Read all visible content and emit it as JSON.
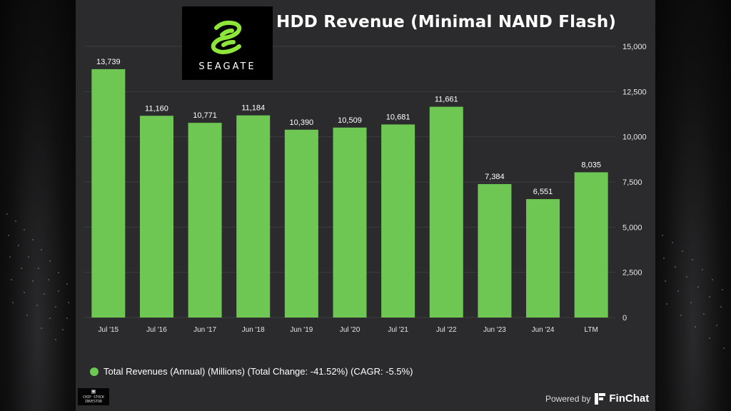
{
  "chart_data": {
    "type": "bar",
    "title": "HDD Revenue (Minimal NAND Flash)",
    "categories": [
      "Jul '15",
      "Jul '16",
      "Jun '17",
      "Jun '18",
      "Jun '19",
      "Jul '20",
      "Jul '21",
      "Jul '22",
      "Jun '23",
      "Jun '24",
      "LTM"
    ],
    "values": [
      13739,
      11160,
      10771,
      11184,
      10390,
      10509,
      10681,
      11661,
      7384,
      6551,
      8035
    ],
    "value_labels": [
      "13,739",
      "11,160",
      "10,771",
      "11,184",
      "10,390",
      "10,509",
      "10,681",
      "11,661",
      "7,384",
      "6,551",
      "8,035"
    ],
    "y_ticks": [
      0,
      2500,
      5000,
      7500,
      10000,
      12500,
      15000
    ],
    "y_tick_labels": [
      "0",
      "2,500",
      "5,000",
      "7,500",
      "10,000",
      "12,500",
      "15,000"
    ],
    "ylim": [
      0,
      15000
    ],
    "axis_side": "right",
    "grid": true,
    "xlabel": "",
    "ylabel": "",
    "legend": "Total Revenues (Annual) (Millions) (Total Change: -41.52%) (CAGR: -5.5%)",
    "legend_position": "bottom-left",
    "bar_color": "#6ec752"
  },
  "logo": {
    "brand": "SEAGATE"
  },
  "badge": {
    "line1": "CHIP STOCK",
    "line2": "INVESTOR"
  },
  "footer": {
    "powered_by": "Powered by",
    "product": "FinChat"
  },
  "colors": {
    "panel": "#2b2b2e",
    "grid": "#3d3d40",
    "text": "#ffffff",
    "bar": "#6ec752"
  }
}
